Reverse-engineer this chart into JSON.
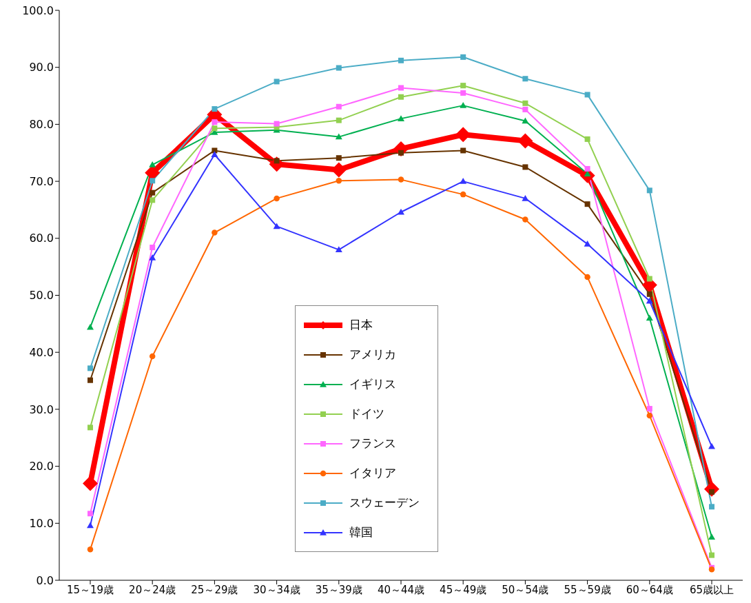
{
  "chart_data": {
    "type": "line",
    "categories": [
      "15～19歳",
      "20～24歳",
      "25～29歳",
      "30～34歳",
      "35～39歳",
      "40～44歳",
      "45～49歳",
      "50～54歳",
      "55～59歳",
      "60～64歳",
      "65歳以上"
    ],
    "ylim": [
      0,
      100
    ],
    "yticks": [
      {
        "value": 0,
        "label": "0.0"
      },
      {
        "value": 10,
        "label": "10.0"
      },
      {
        "value": 20,
        "label": "20.0"
      },
      {
        "value": 30,
        "label": "30.0"
      },
      {
        "value": 40,
        "label": "40.0"
      },
      {
        "value": 50,
        "label": "50.0"
      },
      {
        "value": 60,
        "label": "60.0"
      },
      {
        "value": 70,
        "label": "70.0"
      },
      {
        "value": 80,
        "label": "80.0"
      },
      {
        "value": 90,
        "label": "90.0"
      },
      {
        "value": 100,
        "label": "100.0"
      }
    ],
    "grid": false,
    "legend": "bottom",
    "series": [
      {
        "name": "日本",
        "color": "#ff0000",
        "marker": "diamond",
        "values": [
          17.0,
          71.5,
          81.7,
          73.0,
          72.0,
          75.7,
          78.2,
          77.1,
          71.0,
          51.8,
          16.0
        ]
      },
      {
        "name": "アメリカ",
        "color": "#663300",
        "marker": "square",
        "values": [
          35.1,
          68.0,
          75.4,
          73.6,
          74.1,
          75.0,
          75.4,
          72.5,
          66.0,
          50.2,
          15.5
        ]
      },
      {
        "name": "イギリス",
        "color": "#00b050",
        "marker": "triangle",
        "values": [
          44.4,
          72.9,
          78.6,
          79.0,
          77.8,
          81.0,
          83.3,
          80.6,
          71.3,
          46.0,
          7.6
        ]
      },
      {
        "name": "ドイツ",
        "color": "#92d050",
        "marker": "square",
        "values": [
          26.8,
          66.7,
          79.3,
          79.5,
          80.7,
          84.8,
          86.8,
          83.7,
          77.4,
          52.9,
          4.4
        ]
      },
      {
        "name": "フランス",
        "color": "#ff66ff",
        "marker": "square",
        "values": [
          11.7,
          58.4,
          80.4,
          80.1,
          83.1,
          86.4,
          85.5,
          82.6,
          72.2,
          30.1,
          2.2
        ]
      },
      {
        "name": "イタリア",
        "color": "#ff6600",
        "marker": "circle",
        "values": [
          5.4,
          39.3,
          61.0,
          67.0,
          70.1,
          70.3,
          67.7,
          63.3,
          53.2,
          28.9,
          1.9
        ]
      },
      {
        "name": "スウェーデン",
        "color": "#4bacc6",
        "marker": "square",
        "values": [
          37.2,
          70.1,
          82.7,
          87.5,
          89.9,
          91.2,
          91.8,
          88.0,
          85.2,
          68.4,
          12.9
        ]
      },
      {
        "name": "韓国",
        "color": "#3333ff",
        "marker": "triangle",
        "values": [
          9.6,
          56.6,
          74.7,
          62.1,
          58.0,
          64.6,
          70.0,
          67.0,
          59.0,
          49.0,
          23.5
        ]
      }
    ]
  }
}
